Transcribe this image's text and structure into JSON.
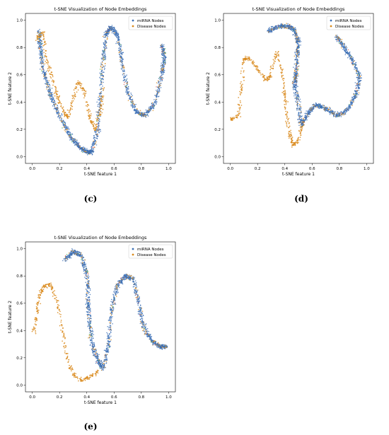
{
  "panels": [
    {
      "letter": "(c)"
    },
    {
      "letter": "(d)"
    },
    {
      "letter": "(e)"
    }
  ],
  "colors": {
    "mirna": "#3b6fb5",
    "disease": "#d98a1c",
    "mix_green": "#59b35d",
    "mix_red": "#e06a5e"
  },
  "chart_data": [
    {
      "type": "scatter",
      "title": "t-SNE Visualization of Node Embeddings",
      "xlabel": "t-SNE feature 1",
      "ylabel": "t-SNE feature 2",
      "xlim": [
        -0.05,
        1.05
      ],
      "ylim": [
        -0.05,
        1.05
      ],
      "xticks": [
        "0.0",
        "0.2",
        "0.4",
        "0.6",
        "0.8",
        "1.0"
      ],
      "yticks": [
        "0.0",
        "0.2",
        "0.4",
        "0.6",
        "0.8",
        "1.0"
      ],
      "legend_position": "top-right",
      "series": [
        {
          "name": "miRNA Nodes",
          "color": "#3b6fb5",
          "path": [
            [
              0.05,
              0.92
            ],
            [
              0.06,
              0.8
            ],
            [
              0.08,
              0.64
            ],
            [
              0.12,
              0.5
            ],
            [
              0.17,
              0.36
            ],
            [
              0.24,
              0.22
            ],
            [
              0.3,
              0.12
            ],
            [
              0.36,
              0.06
            ],
            [
              0.41,
              0.03
            ],
            [
              0.44,
              0.04
            ],
            [
              0.48,
              0.2
            ],
            [
              0.5,
              0.45
            ],
            [
              0.52,
              0.72
            ],
            [
              0.54,
              0.9
            ],
            [
              0.58,
              0.95
            ],
            [
              0.63,
              0.88
            ],
            [
              0.66,
              0.7
            ],
            [
              0.7,
              0.48
            ],
            [
              0.76,
              0.33
            ],
            [
              0.83,
              0.3
            ],
            [
              0.9,
              0.4
            ],
            [
              0.95,
              0.6
            ],
            [
              0.97,
              0.72
            ],
            [
              0.95,
              0.82
            ]
          ]
        },
        {
          "name": "Disease Nodes",
          "color": "#d98a1c",
          "path": [
            [
              0.03,
              0.86
            ],
            [
              0.08,
              0.92
            ],
            [
              0.1,
              0.72
            ],
            [
              0.14,
              0.6
            ],
            [
              0.18,
              0.45
            ],
            [
              0.22,
              0.35
            ],
            [
              0.26,
              0.28
            ],
            [
              0.3,
              0.42
            ],
            [
              0.34,
              0.55
            ],
            [
              0.38,
              0.48
            ],
            [
              0.42,
              0.3
            ],
            [
              0.46,
              0.2
            ],
            [
              0.5,
              0.32
            ],
            [
              0.52,
              0.5
            ]
          ]
        }
      ]
    },
    {
      "type": "scatter",
      "title": "t-SNE Visualization of Node Embeddings",
      "xlabel": "t-SNE feature 1",
      "ylabel": "t-SNE feature 2",
      "xlim": [
        -0.05,
        1.05
      ],
      "ylim": [
        -0.05,
        1.05
      ],
      "xticks": [
        "0.0",
        "0.2",
        "0.4",
        "0.6",
        "0.8",
        "1.0"
      ],
      "yticks": [
        "0.0",
        "0.2",
        "0.4",
        "0.6",
        "0.8",
        "1.0"
      ],
      "legend_position": "top-right",
      "series": [
        {
          "name": "miRNA Nodes",
          "color": "#3b6fb5",
          "path": [
            [
              0.28,
              0.92
            ],
            [
              0.34,
              0.95
            ],
            [
              0.42,
              0.96
            ],
            [
              0.47,
              0.93
            ],
            [
              0.5,
              0.84
            ],
            [
              0.49,
              0.72
            ],
            [
              0.48,
              0.6
            ],
            [
              0.47,
              0.52
            ],
            [
              0.5,
              0.38
            ],
            [
              0.52,
              0.22
            ],
            [
              0.57,
              0.32
            ],
            [
              0.63,
              0.38
            ],
            [
              0.7,
              0.35
            ],
            [
              0.78,
              0.3
            ],
            [
              0.86,
              0.34
            ],
            [
              0.92,
              0.45
            ],
            [
              0.95,
              0.58
            ],
            [
              0.9,
              0.7
            ],
            [
              0.84,
              0.8
            ],
            [
              0.78,
              0.88
            ]
          ]
        },
        {
          "name": "Disease Nodes",
          "color": "#d98a1c",
          "path": [
            [
              0.0,
              0.27
            ],
            [
              0.06,
              0.3
            ],
            [
              0.08,
              0.5
            ],
            [
              0.1,
              0.72
            ],
            [
              0.14,
              0.72
            ],
            [
              0.2,
              0.64
            ],
            [
              0.26,
              0.56
            ],
            [
              0.3,
              0.6
            ],
            [
              0.34,
              0.78
            ],
            [
              0.38,
              0.6
            ],
            [
              0.4,
              0.45
            ],
            [
              0.42,
              0.28
            ],
            [
              0.44,
              0.15
            ],
            [
              0.46,
              0.08
            ],
            [
              0.5,
              0.12
            ],
            [
              0.54,
              0.28
            ]
          ]
        }
      ]
    },
    {
      "type": "scatter",
      "title": "t-SNE Visualization of Node Embeddings",
      "xlabel": "t-SNE feature 1",
      "ylabel": "t-SNE feature 2",
      "xlim": [
        -0.05,
        1.05
      ],
      "ylim": [
        -0.05,
        1.05
      ],
      "xticks": [
        "0.0",
        "0.2",
        "0.4",
        "0.6",
        "0.8",
        "1.0"
      ],
      "yticks": [
        "0.0",
        "0.2",
        "0.4",
        "0.6",
        "0.8",
        "1.0"
      ],
      "legend_position": "top-right",
      "series": [
        {
          "name": "miRNA Nodes",
          "color": "#3b6fb5",
          "path": [
            [
              0.24,
              0.92
            ],
            [
              0.3,
              0.98
            ],
            [
              0.36,
              0.95
            ],
            [
              0.4,
              0.82
            ],
            [
              0.41,
              0.62
            ],
            [
              0.42,
              0.46
            ],
            [
              0.44,
              0.3
            ],
            [
              0.48,
              0.18
            ],
            [
              0.52,
              0.12
            ],
            [
              0.56,
              0.3
            ],
            [
              0.58,
              0.55
            ],
            [
              0.62,
              0.72
            ],
            [
              0.68,
              0.8
            ],
            [
              0.74,
              0.78
            ],
            [
              0.78,
              0.6
            ],
            [
              0.82,
              0.42
            ],
            [
              0.88,
              0.32
            ],
            [
              0.94,
              0.28
            ],
            [
              0.98,
              0.28
            ]
          ]
        },
        {
          "name": "Disease Nodes",
          "color": "#d98a1c",
          "path": [
            [
              0.01,
              0.38
            ],
            [
              0.03,
              0.5
            ],
            [
              0.05,
              0.65
            ],
            [
              0.08,
              0.72
            ],
            [
              0.13,
              0.74
            ],
            [
              0.18,
              0.62
            ],
            [
              0.22,
              0.42
            ],
            [
              0.25,
              0.22
            ],
            [
              0.3,
              0.08
            ],
            [
              0.36,
              0.03
            ],
            [
              0.42,
              0.06
            ],
            [
              0.48,
              0.1
            ]
          ]
        }
      ]
    }
  ]
}
